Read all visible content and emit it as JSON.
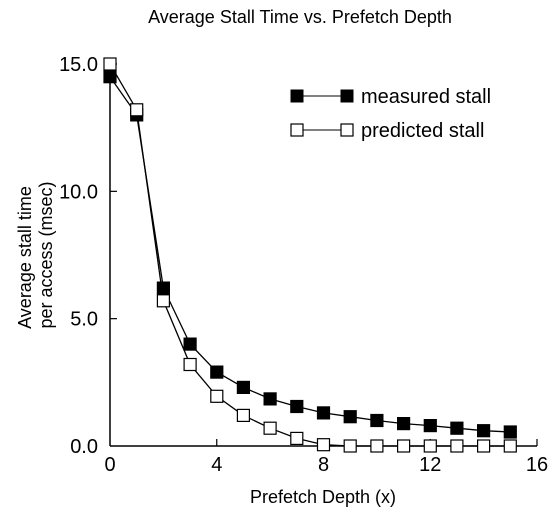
{
  "chart_data": {
    "type": "line",
    "title": "Average Stall Time vs. Prefetch Depth",
    "xlabel": "Prefetch Depth (x)",
    "ylabel_lines": [
      "Average stall time",
      "per access (msec)"
    ],
    "xlim": [
      0,
      16
    ],
    "ylim": [
      0,
      15
    ],
    "x_ticks": [
      0,
      4,
      8,
      12,
      16
    ],
    "x_tick_labels": [
      "0",
      "4",
      "8",
      "12",
      "16"
    ],
    "y_ticks": [
      0,
      5,
      10,
      15
    ],
    "y_tick_labels": [
      "0.0",
      "5.0",
      "10.0",
      "15.0"
    ],
    "grid": false,
    "legend_position": "top-right",
    "x": [
      0,
      1,
      2,
      3,
      4,
      5,
      6,
      7,
      8,
      9,
      10,
      11,
      12,
      13,
      14,
      15
    ],
    "series": [
      {
        "name": "measured stall",
        "marker": "filled-square",
        "color": "#000000",
        "values": [
          14.5,
          13.0,
          6.2,
          4.0,
          2.9,
          2.3,
          1.85,
          1.55,
          1.3,
          1.15,
          1.0,
          0.88,
          0.8,
          0.7,
          0.6,
          0.55
        ]
      },
      {
        "name": "predicted stall",
        "marker": "open-square",
        "color": "#000000",
        "values": [
          15.0,
          13.2,
          5.7,
          3.2,
          1.95,
          1.2,
          0.7,
          0.3,
          0.05,
          0.0,
          0.0,
          0.0,
          0.0,
          0.0,
          0.0,
          0.0
        ]
      }
    ]
  }
}
